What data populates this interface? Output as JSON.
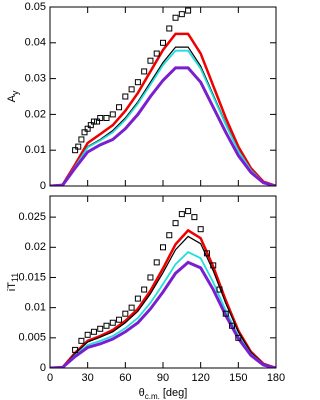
{
  "chart_data": [
    {
      "type": "line",
      "ylabel": {
        "main": "A",
        "sub": "y"
      },
      "xlim": [
        0,
        180
      ],
      "xticks": [
        0,
        30,
        60,
        90,
        120,
        150,
        180
      ],
      "show_xtick_labels": false,
      "ylim": [
        0,
        0.05
      ],
      "yticks": [
        0,
        0.01,
        0.02,
        0.03,
        0.04,
        0.05
      ],
      "x": [
        0,
        10,
        20,
        30,
        40,
        50,
        60,
        70,
        80,
        90,
        100,
        110,
        120,
        130,
        140,
        150,
        160,
        170,
        180
      ],
      "series": [
        {
          "color": "#ee0000",
          "width": 2.5,
          "values": [
            0,
            0.0003,
            0.006,
            0.012,
            0.0145,
            0.017,
            0.021,
            0.026,
            0.032,
            0.038,
            0.0425,
            0.0425,
            0.037,
            0.028,
            0.019,
            0.011,
            0.005,
            0.0012,
            0
          ]
        },
        {
          "color": "#000000",
          "width": 1.2,
          "values": [
            0,
            0.0003,
            0.0055,
            0.011,
            0.013,
            0.0155,
            0.019,
            0.0235,
            0.029,
            0.0345,
            0.0388,
            0.0388,
            0.0335,
            0.0255,
            0.0175,
            0.01,
            0.0045,
            0.001,
            0
          ]
        },
        {
          "color": "#22dddd",
          "width": 1.8,
          "values": [
            0,
            0.0003,
            0.0054,
            0.0108,
            0.0127,
            0.015,
            0.0185,
            0.023,
            0.0283,
            0.0338,
            0.0378,
            0.0378,
            0.0328,
            0.025,
            0.0171,
            0.0098,
            0.0044,
            0.001,
            0
          ]
        },
        {
          "color": "#7a1fd0",
          "width": 3,
          "values": [
            0,
            0.0002,
            0.005,
            0.0095,
            0.0115,
            0.013,
            0.016,
            0.02,
            0.025,
            0.0295,
            0.033,
            0.033,
            0.029,
            0.022,
            0.015,
            0.0085,
            0.0038,
            0.0009,
            0
          ]
        }
      ],
      "points": {
        "marker": "square",
        "color": "#000000",
        "x": [
          20,
          22.5,
          25,
          27.5,
          30,
          32.5,
          35,
          37.5,
          40,
          45,
          50,
          55,
          60,
          65,
          70,
          75,
          80,
          85,
          90,
          95,
          100,
          105,
          110
        ],
        "values": [
          0.01,
          0.011,
          0.013,
          0.015,
          0.016,
          0.017,
          0.018,
          0.018,
          0.019,
          0.019,
          0.02,
          0.022,
          0.025,
          0.027,
          0.029,
          0.032,
          0.035,
          0.037,
          0.04,
          0.044,
          0.047,
          0.048,
          0.049
        ]
      }
    },
    {
      "type": "line",
      "ylabel": {
        "main": "iT",
        "sub": "11"
      },
      "xlabel": {
        "main": "θ",
        "sub": "c.m.",
        "unit": "[deg]"
      },
      "xlim": [
        0,
        180
      ],
      "xticks": [
        0,
        30,
        60,
        90,
        120,
        150,
        180
      ],
      "show_xtick_labels": true,
      "ylim": [
        0,
        0.0285
      ],
      "yticks": [
        0,
        0.005,
        0.01,
        0.015,
        0.02,
        0.025
      ],
      "x": [
        0,
        10,
        20,
        30,
        40,
        50,
        60,
        70,
        80,
        90,
        100,
        110,
        120,
        130,
        140,
        150,
        160,
        170,
        180
      ],
      "series": [
        {
          "color": "#ee0000",
          "width": 2.5,
          "values": [
            0,
            0.0001,
            0.0025,
            0.0045,
            0.0053,
            0.0063,
            0.0078,
            0.0098,
            0.0128,
            0.0165,
            0.0205,
            0.0228,
            0.0215,
            0.0168,
            0.0112,
            0.0062,
            0.0027,
            0.0007,
            0
          ]
        },
        {
          "color": "#000000",
          "width": 1.2,
          "values": [
            0,
            0.0001,
            0.0024,
            0.0043,
            0.0051,
            0.006,
            0.0075,
            0.0094,
            0.0123,
            0.0158,
            0.0196,
            0.0218,
            0.0206,
            0.0161,
            0.0107,
            0.006,
            0.0026,
            0.0007,
            0
          ]
        },
        {
          "color": "#22dddd",
          "width": 1.8,
          "values": [
            0,
            0.0001,
            0.0021,
            0.0038,
            0.0045,
            0.0053,
            0.0066,
            0.0083,
            0.0108,
            0.0139,
            0.0172,
            0.0192,
            0.0182,
            0.0142,
            0.0095,
            0.0053,
            0.0023,
            0.0006,
            0
          ]
        },
        {
          "color": "#7a1fd0",
          "width": 3,
          "values": [
            0,
            0.0001,
            0.0019,
            0.0034,
            0.004,
            0.0048,
            0.006,
            0.0075,
            0.0098,
            0.0126,
            0.0157,
            0.0175,
            0.0166,
            0.013,
            0.0087,
            0.0049,
            0.0021,
            0.0005,
            0
          ]
        }
      ],
      "points": {
        "marker": "square",
        "color": "#000000",
        "x": [
          20,
          25,
          30,
          35,
          40,
          45,
          50,
          55,
          60,
          65,
          70,
          75,
          80,
          85,
          90,
          95,
          100,
          105,
          110,
          115,
          120,
          125,
          130,
          135,
          140,
          145,
          150
        ],
        "values": [
          0.003,
          0.0045,
          0.0055,
          0.006,
          0.0065,
          0.007,
          0.0075,
          0.008,
          0.009,
          0.01,
          0.0115,
          0.013,
          0.015,
          0.0175,
          0.02,
          0.022,
          0.024,
          0.0255,
          0.026,
          0.025,
          0.023,
          0.019,
          0.017,
          0.013,
          0.009,
          0.007,
          0.005
        ]
      }
    }
  ]
}
